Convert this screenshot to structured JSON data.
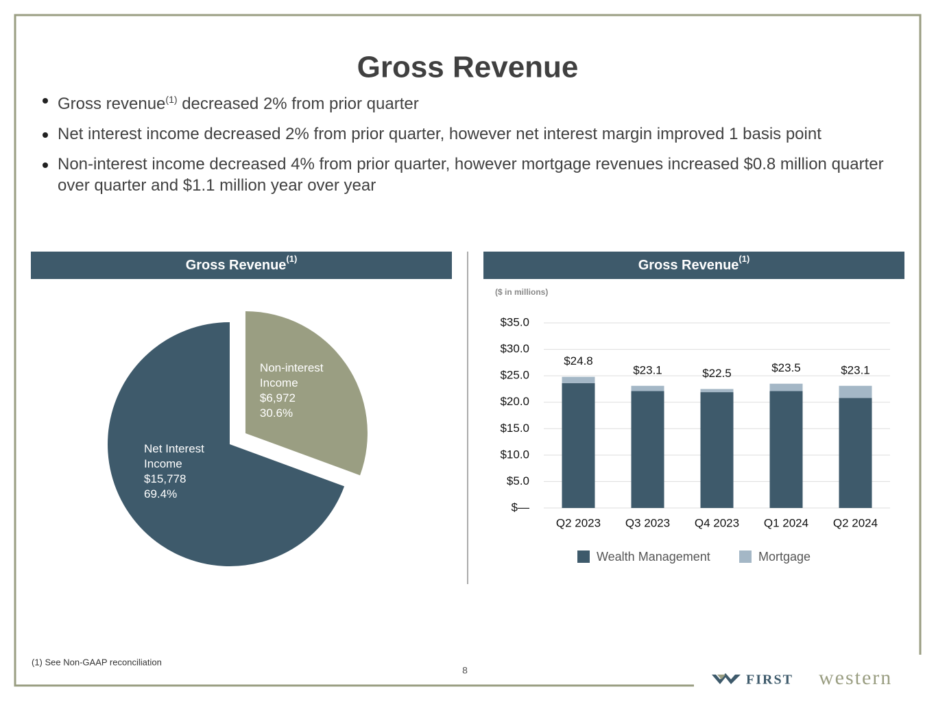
{
  "title": "Gross Revenue",
  "bullets": [
    {
      "before": "Gross revenue",
      "note": "(1)",
      "after": "decreased 2% from prior quarter"
    },
    "Net interest income decreased 2% from prior quarter, however net interest margin improved 1 basis point",
    "Non-interest income decreased 4% from prior quarter, however mortgage revenues increased $0.8 million quarter over quarter and $1.1 million year over year"
  ],
  "chart_data": [
    {
      "type": "pie",
      "title": "Gross Revenue",
      "title_note": "(1)",
      "categories": [
        "Non-interest Income",
        "Net Interest Income"
      ],
      "values": [
        30.6,
        69.4
      ],
      "value_labels": [
        "30.6%",
        "69.4%"
      ],
      "amounts": [
        6972,
        15778
      ],
      "amount_labels": [
        "$6,972",
        "$15,778"
      ],
      "colors": [
        "#9a9e82",
        "#3e5a6b"
      ],
      "exploded": "Non-interest Income"
    },
    {
      "type": "bar",
      "stacked": true,
      "title": "Gross Revenue",
      "title_note": "(1)",
      "subtitle": "($ in millions)",
      "categories": [
        "Q2 2023",
        "Q3 2023",
        "Q4 2023",
        "Q1 2024",
        "Q2 2024"
      ],
      "series": [
        {
          "name": "Wealth Management",
          "color": "#3e5a6b",
          "values": [
            23.6,
            22.1,
            21.9,
            22.1,
            20.8
          ]
        },
        {
          "name": "Mortgage",
          "color": "#a4b7c6",
          "values": [
            1.2,
            1.0,
            0.6,
            1.4,
            2.3
          ]
        }
      ],
      "totals": [
        24.8,
        23.1,
        22.5,
        23.5,
        23.1
      ],
      "total_labels": [
        "$24.8",
        "$23.1",
        "$22.5",
        "$23.5",
        "$23.1"
      ],
      "ylim": [
        0,
        35
      ],
      "yticks": [
        {
          "value": 0,
          "label": "$—"
        },
        {
          "value": 5,
          "label": "$5.0"
        },
        {
          "value": 10,
          "label": "$10.0"
        },
        {
          "value": 15,
          "label": "$15.0"
        },
        {
          "value": 20,
          "label": "$20.0"
        },
        {
          "value": 25,
          "label": "$25.0"
        },
        {
          "value": 30,
          "label": "$30.0"
        },
        {
          "value": 35,
          "label": "$35.0"
        }
      ],
      "grid": true,
      "legend": "bottom"
    }
  ],
  "footnote": "(1) See Non-GAAP reconciliation",
  "page_number": 8,
  "logo": {
    "first": "FIRST",
    "western": "western"
  }
}
